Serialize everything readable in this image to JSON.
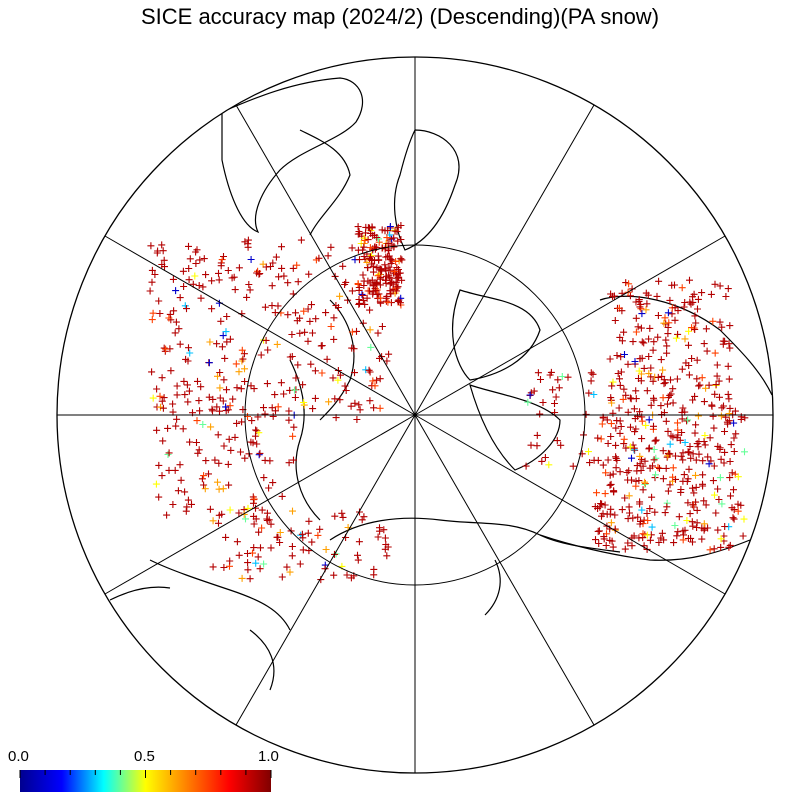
{
  "title": "SICE accuracy map (2024/2) (Descending)(PA snow)",
  "colorbar": {
    "stops": [
      "#00008f",
      "#0000ff",
      "#00ffff",
      "#ffff00",
      "#ff7f00",
      "#ff0000",
      "#800000"
    ],
    "tick_labels": [
      "0.0",
      "0.5",
      "1.0"
    ],
    "range": [
      0.0,
      1.0
    ]
  },
  "map": {
    "projection": "north-polar-stereographic",
    "meridian_count": 12,
    "latitude_circle": true,
    "marker": "+",
    "dominant_value_color": "#b30000"
  }
}
